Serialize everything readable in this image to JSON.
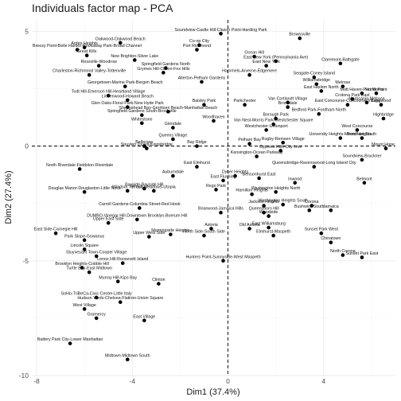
{
  "chart_data": {
    "type": "scatter",
    "title": "Individuals factor map - PCA",
    "xlabel": "Dim1 (37.4%)",
    "ylabel": "Dim2 (27.4%)",
    "xlim": [
      -8.2,
      7.0
    ],
    "ylim": [
      -10.0,
      5.5
    ],
    "xticks": [
      -8,
      -4,
      0,
      4
    ],
    "yticks": [
      -10,
      -5,
      0,
      5
    ],
    "grid": true,
    "ref_lines": {
      "x": 0,
      "y": 0
    },
    "points": [
      {
        "label": "Soundview-Castle Hill-Clason Point-Harding Park",
        "x": -0.3,
        "y": 4.9
      },
      {
        "label": "Brownsville",
        "x": 3.0,
        "y": 4.7
      },
      {
        "label": "Oakwood-Oakwood Beach",
        "x": -4.5,
        "y": 4.5
      },
      {
        "label": "Co-op City",
        "x": -1.2,
        "y": 4.4
      },
      {
        "label": "Port Richmond",
        "x": -1.3,
        "y": 4.2
      },
      {
        "label": "Breezy Point-Belle Harbor-Rockaway Park-Broad Channel",
        "x": -6.3,
        "y": 4.2
      },
      {
        "label": "Arden Heights",
        "x": -6.0,
        "y": 4.3
      },
      {
        "label": "Great Kills",
        "x": -5.9,
        "y": 3.95
      },
      {
        "label": "Ocean Hill",
        "x": 1.1,
        "y": 3.9
      },
      {
        "label": "East New York (Pennsylvania Ave)",
        "x": 2.0,
        "y": 3.7
      },
      {
        "label": "East New York",
        "x": 1.6,
        "y": 3.5
      },
      {
        "label": "Claremont-Bathgate",
        "x": 4.7,
        "y": 3.6
      },
      {
        "label": "New Brighton-Silver Lake",
        "x": -3.9,
        "y": 3.75
      },
      {
        "label": "Rossville-Woodrow",
        "x": -5.4,
        "y": 3.5
      },
      {
        "label": "Springfield Gardens North",
        "x": -2.6,
        "y": 3.4
      },
      {
        "label": "Charleston-Richmond Valley-Tottenville",
        "x": -5.8,
        "y": 3.1
      },
      {
        "label": "Grymes Hill-Clifton-Fox Hills",
        "x": -2.7,
        "y": 3.2
      },
      {
        "label": "Hammels-Arverne-Edgemere",
        "x": 0.9,
        "y": 3.1
      },
      {
        "label": "Seagate-Coney Island",
        "x": 3.6,
        "y": 3.0
      },
      {
        "label": "Williamsbridge",
        "x": 3.7,
        "y": 2.7
      },
      {
        "label": "Allerton-Pelham Gardens",
        "x": -1.1,
        "y": 2.8
      },
      {
        "label": "East Harlem North",
        "x": 3.9,
        "y": 2.4
      },
      {
        "label": "Melrose",
        "x": 4.8,
        "y": 2.6
      },
      {
        "label": "Mott Haven-Port Morris",
        "x": 5.6,
        "y": 2.3
      },
      {
        "label": "Hunts Point",
        "x": 6.2,
        "y": 2.3
      },
      {
        "label": "Todt Hill-Emerson Hill-Heartland Village",
        "x": -5.0,
        "y": 2.2
      },
      {
        "label": "Georgetown-Marine Park-Bergen Beach",
        "x": -4.3,
        "y": 2.6
      },
      {
        "label": "Lindenwood-Howard Beach",
        "x": -4.2,
        "y": 2.0
      },
      {
        "label": "Crotona Park East",
        "x": 5.2,
        "y": 2.05
      },
      {
        "label": "Van Cortlandt Village",
        "x": 2.5,
        "y": 1.9
      },
      {
        "label": "East Concourse-Concourse Village",
        "x": 5.0,
        "y": 1.8
      },
      {
        "label": "Morrisania-Melrose",
        "x": 5.8,
        "y": 1.9
      },
      {
        "label": "Bronxdale",
        "x": 2.5,
        "y": 1.7
      },
      {
        "label": "Baisley Park",
        "x": -1.0,
        "y": 1.8
      },
      {
        "label": "Parkchester",
        "x": 0.7,
        "y": 1.8
      },
      {
        "label": "Glen Oaks-Floral Park-New Hyde Park",
        "x": -4.2,
        "y": 1.7
      },
      {
        "label": "Springfield Gardens South-Brookville",
        "x": -3.6,
        "y": 1.35
      },
      {
        "label": "Whitestone",
        "x": -3.6,
        "y": 1.0
      },
      {
        "label": "Sheepshead Bay-Gerritsen Beach-Manhattan Beach",
        "x": -2.5,
        "y": 1.5
      },
      {
        "label": "Bedford Park-Fordham North",
        "x": 3.8,
        "y": 1.4
      },
      {
        "label": "Glendale",
        "x": -2.3,
        "y": 0.8
      },
      {
        "label": "Highbridge",
        "x": 6.5,
        "y": 1.2
      },
      {
        "label": "Longwood",
        "x": 6.4,
        "y": 1.8
      },
      {
        "label": "Borough Park",
        "x": 2.0,
        "y": 1.2
      },
      {
        "label": "Van Nest-Morris Park-Westchester Square",
        "x": 1.9,
        "y": 0.95
      },
      {
        "label": "Westchester-Unionport",
        "x": 1.6,
        "y": 0.7
      },
      {
        "label": "Woodhaven",
        "x": -0.6,
        "y": 1.1
      },
      {
        "label": "Queens Village",
        "x": -2.3,
        "y": 0.3
      },
      {
        "label": "Fordham South",
        "x": 5.6,
        "y": 0.35
      },
      {
        "label": "University Heights-Morris Heights",
        "x": 4.7,
        "y": 0.35
      },
      {
        "label": "West Concourse",
        "x": 5.4,
        "y": 0.7
      },
      {
        "label": "Mount Hope",
        "x": 6.6,
        "y": -0.1
      },
      {
        "label": "Pelham Bay",
        "x": 0.9,
        "y": 0.1
      },
      {
        "label": "Rugby-Remsen Village",
        "x": 2.3,
        "y": 0.15
      },
      {
        "label": "Bay Ridge",
        "x": -1.3,
        "y": 0.0
      },
      {
        "label": "Soundview-Bruckner",
        "x": 5.6,
        "y": -0.6
      },
      {
        "label": "Cypress Hills-City Line",
        "x": 2.2,
        "y": -0.2
      },
      {
        "label": "Belmont",
        "x": 5.7,
        "y": -1.6
      },
      {
        "label": "Spuyten Duyvil-Kingsbridge",
        "x": -3.4,
        "y": -0.1
      },
      {
        "label": "Bellerose",
        "x": -3.5,
        "y": 0.0
      },
      {
        "label": "Kensington-Ocean Parkway",
        "x": 1.2,
        "y": -0.45
      },
      {
        "label": "Queensbridge-Ravenswood-Long Island City",
        "x": 3.6,
        "y": -0.9
      },
      {
        "label": "North Riverdale-Fieldston-Riverdale",
        "x": -6.2,
        "y": -1.0
      },
      {
        "label": "East Elmhurst",
        "x": -1.3,
        "y": -0.9
      },
      {
        "label": "Auburndale",
        "x": -2.3,
        "y": -1.3
      },
      {
        "label": "Dyker Heights",
        "x": 0.3,
        "y": -1.3
      },
      {
        "label": "Bensonhurst East",
        "x": 1.3,
        "y": -1.4
      },
      {
        "label": "East Flushing",
        "x": -0.2,
        "y": -1.5
      },
      {
        "label": "Bayside-Bayside Hill",
        "x": -3.5,
        "y": -1.85
      },
      {
        "label": "Fresh Meadows-Utopia",
        "x": -3.1,
        "y": -1.95
      },
      {
        "label": "Rego Park",
        "x": -0.5,
        "y": -1.9
      },
      {
        "label": "Windsor Terrace",
        "x": -4.2,
        "y": -1.95
      },
      {
        "label": "Douglas Manor-Douglaston-Little Neck",
        "x": -6.0,
        "y": -2.0
      },
      {
        "label": "Hamilton Heights",
        "x": 1.0,
        "y": -2.1
      },
      {
        "label": "Washington Heights North",
        "x": 2.0,
        "y": -2.0
      },
      {
        "label": "Washington Heights South",
        "x": 2.3,
        "y": -2.55
      },
      {
        "label": "Inwood",
        "x": 2.8,
        "y": -1.6
      },
      {
        "label": "Corona",
        "x": 3.5,
        "y": -2.6
      },
      {
        "label": "Bushwick South",
        "x": 3.4,
        "y": -2.8
      },
      {
        "label": "Jamaica",
        "x": 4.3,
        "y": -2.8
      },
      {
        "label": "Jackson Heights",
        "x": 1.5,
        "y": -2.6
      },
      {
        "label": "Carroll Gardens-Columbia Street-Red Hook",
        "x": -3.7,
        "y": -2.7
      },
      {
        "label": "Briarwood-Jamaica Hills",
        "x": -0.3,
        "y": -2.9
      },
      {
        "label": "Queensboro Hill",
        "x": 1.5,
        "y": -2.9
      },
      {
        "label": "Woodside",
        "x": 1.7,
        "y": -3.05
      },
      {
        "label": "DUMBO-Vinegar Hill-Downtown Brooklyn-Boerum Hill",
        "x": -3.8,
        "y": -3.2
      },
      {
        "label": "Upper East Side",
        "x": -5.0,
        "y": -3.35
      },
      {
        "label": "East Side-Carnegie Hill",
        "x": -7.2,
        "y": -3.8
      },
      {
        "label": "Park Slope-Gowanus",
        "x": -6.0,
        "y": -4.1
      },
      {
        "label": "Morningside Heights",
        "x": -2.4,
        "y": -3.85
      },
      {
        "label": "Upper West Side",
        "x": -3.3,
        "y": -3.95
      },
      {
        "label": "North Side-South Side",
        "x": -1.0,
        "y": -3.9
      },
      {
        "label": "Astoria",
        "x": -0.7,
        "y": -3.6
      },
      {
        "label": "Old Astoria",
        "x": 0.9,
        "y": -3.6
      },
      {
        "label": "East Williamsburg",
        "x": 1.7,
        "y": -3.55
      },
      {
        "label": "Elmhurst-Maspeth",
        "x": 1.9,
        "y": -3.9
      },
      {
        "label": "Sunset Park West",
        "x": 3.9,
        "y": -3.8
      },
      {
        "label": "Chinatown",
        "x": 4.3,
        "y": -4.2
      },
      {
        "label": "Lincoln Square",
        "x": -6.0,
        "y": -4.5
      },
      {
        "label": "Stuyvesant Town-Cooper Village",
        "x": -5.5,
        "y": -4.8
      },
      {
        "label": "Lenox Hill-Roosevelt Island",
        "x": -4.4,
        "y": -5.1
      },
      {
        "label": "North Corona",
        "x": 4.8,
        "y": -4.75
      },
      {
        "label": "Sunset Park East",
        "x": 5.6,
        "y": -4.85
      },
      {
        "label": "Hunters Point-Sunnyside-West Maspeth",
        "x": -0.2,
        "y": -5.0
      },
      {
        "label": "Brooklyn Heights-Cobble Hill",
        "x": -6.1,
        "y": -5.3
      },
      {
        "label": "Turtle Bay-East Midtown",
        "x": -5.8,
        "y": -5.5
      },
      {
        "label": "Murray Hill-Kips Bay",
        "x": -4.6,
        "y": -5.9
      },
      {
        "label": "Clinton",
        "x": -2.9,
        "y": -6.0
      },
      {
        "label": "SoHo-TriBeCa-Civic Center-Little Italy",
        "x": -5.5,
        "y": -6.6
      },
      {
        "label": "Hudson Yards-Chelsea-Flatiron-Union Square",
        "x": -4.5,
        "y": -6.8
      },
      {
        "label": "West Village",
        "x": -6.0,
        "y": -7.1
      },
      {
        "label": "Gramercy",
        "x": -5.5,
        "y": -7.5
      },
      {
        "label": "East Village",
        "x": -3.5,
        "y": -7.6
      },
      {
        "label": "Battery Park City-Lower Manhattan",
        "x": -6.6,
        "y": -8.6
      },
      {
        "label": "Midtown-Midtown South",
        "x": -4.2,
        "y": -9.3
      }
    ]
  }
}
